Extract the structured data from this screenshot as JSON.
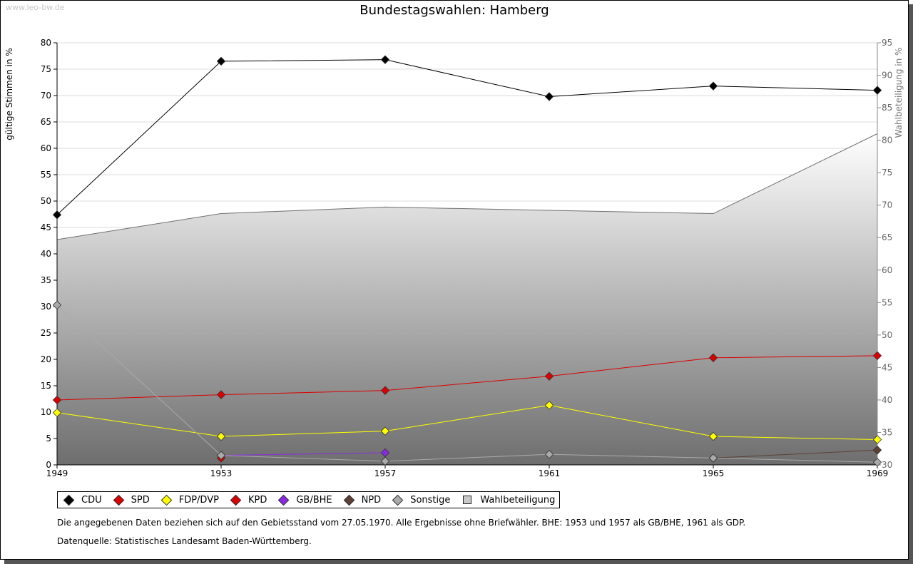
{
  "watermark": "www.leo-bw.de",
  "title": "Bundestagswahlen: Hamberg",
  "chart_data": {
    "type": "line",
    "title": "Bundestagswahlen: Hamberg",
    "ylabel": "gültige Stimmen in %",
    "y2label": "Wahlbeteiligung in %",
    "xlabel": "",
    "x": [
      1949,
      1953,
      1957,
      1961,
      1965,
      1969
    ],
    "ylim": [
      0,
      80
    ],
    "yticks": [
      0,
      5,
      10,
      15,
      20,
      25,
      30,
      35,
      40,
      45,
      50,
      55,
      60,
      65,
      70,
      75,
      80
    ],
    "y2lim": [
      30,
      95
    ],
    "y2ticks": [
      30,
      35,
      40,
      45,
      50,
      55,
      60,
      65,
      70,
      75,
      80,
      85,
      90,
      95
    ],
    "grid": true,
    "legend_position": "bottom",
    "series": [
      {
        "name": "CDU",
        "color": "#000000",
        "values": [
          47.4,
          76.5,
          76.8,
          69.8,
          71.8,
          71.0
        ]
      },
      {
        "name": "SPD",
        "color": "#dd0000",
        "values": [
          12.3,
          13.3,
          14.1,
          16.8,
          20.3,
          20.7
        ]
      },
      {
        "name": "FDP/DVP",
        "color": "#ffff00",
        "values": [
          9.9,
          5.4,
          6.4,
          11.3,
          5.4,
          4.8
        ]
      },
      {
        "name": "KPD",
        "color": "#dd0000",
        "values": [
          null,
          1.3,
          null,
          null,
          null,
          null
        ]
      },
      {
        "name": "GB/BHE",
        "color": "#8a2be2",
        "values": [
          null,
          1.8,
          2.3,
          null,
          null,
          null
        ]
      },
      {
        "name": "NPD",
        "color": "#5c4033",
        "values": [
          null,
          null,
          null,
          null,
          1.3,
          2.8
        ]
      },
      {
        "name": "Sonstige",
        "color": "#aaaaaa",
        "values": [
          30.3,
          1.8,
          0.7,
          2.0,
          1.3,
          0.5
        ]
      }
    ],
    "turnout": {
      "name": "Wahlbeteiligung",
      "axis": "right",
      "values": [
        64.7,
        68.7,
        69.7,
        69.2,
        68.7,
        81.0
      ]
    }
  },
  "note": "Die angegebenen Daten beziehen sich auf den Gebietsstand vom 27.05.1970. Alle Ergebnisse ohne Briefwähler. BHE: 1953 und 1957 als GB/BHE, 1961 als GDP.",
  "source": "Datenquelle: Statistisches Landesamt Baden-Württemberg."
}
